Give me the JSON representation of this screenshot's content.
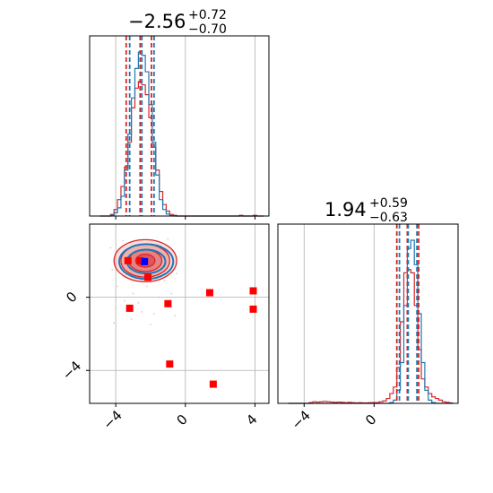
{
  "chart_data": {
    "type": "corner",
    "colors": {
      "blue": "#1f77b4",
      "red": "#d62728",
      "grid": "#b0b0b0",
      "marker_red": "#ff0000",
      "marker_blue": "#0000ff"
    },
    "params": [
      {
        "title_main": "−2.56",
        "title_sup": "+0.72",
        "title_sub": "−0.70",
        "xlim": [
          -5.5,
          4.8
        ],
        "ticks": [
          -4,
          0,
          4
        ],
        "tick_labels": [
          "−4",
          "0",
          "4"
        ],
        "quantiles_blue": [
          -3.2,
          -2.5,
          -1.8
        ],
        "quantiles_red": [
          -3.4,
          -2.6,
          -1.95
        ],
        "bin_centers": [
          -4.8,
          -4.6,
          -4.4,
          -4.2,
          -4.0,
          -3.8,
          -3.6,
          -3.4,
          -3.2,
          -3.0,
          -2.8,
          -2.6,
          -2.4,
          -2.2,
          -2.0,
          -1.8,
          -1.6,
          -1.4,
          -1.2,
          -1.0,
          -0.8,
          -0.6,
          -0.4,
          -0.2,
          0.0,
          0.2,
          0.4,
          0.6,
          0.8,
          1.0,
          1.2,
          1.4,
          1.6,
          1.8,
          2.0,
          2.2,
          2.4,
          2.6,
          2.8,
          3.0,
          3.2,
          3.4,
          3.6,
          3.8,
          4.0,
          4.2,
          4.4
        ],
        "hist_blue": [
          0,
          0,
          0,
          0.005,
          0.02,
          0.05,
          0.12,
          0.28,
          0.5,
          0.72,
          0.9,
          1.0,
          0.98,
          0.88,
          0.68,
          0.45,
          0.25,
          0.1,
          0.04,
          0.012,
          0.003,
          0,
          0,
          0,
          0,
          0,
          0,
          0,
          0,
          0,
          0,
          0,
          0,
          0,
          0,
          0,
          0,
          0,
          0,
          0,
          0,
          0,
          0,
          0,
          0,
          0,
          0
        ],
        "hist_red": [
          0,
          0,
          0,
          0.01,
          0.04,
          0.1,
          0.18,
          0.3,
          0.45,
          0.66,
          0.78,
          0.82,
          0.8,
          0.74,
          0.6,
          0.42,
          0.28,
          0.15,
          0.07,
          0.03,
          0.01,
          0.004,
          0,
          0,
          0,
          0,
          0,
          0,
          0,
          0,
          0,
          0,
          0,
          0,
          0,
          0,
          0,
          0,
          0,
          0,
          0.004,
          0,
          0,
          0,
          0.004,
          0,
          0
        ]
      },
      {
        "title_main": "1.94",
        "title_sup": "+0.59",
        "title_sub": "−0.63",
        "xlim": [
          -5.5,
          4.8
        ],
        "ticks": [
          -4,
          0
        ],
        "tick_labels": [
          "−4",
          "0"
        ],
        "quantiles_blue": [
          1.45,
          1.95,
          2.45
        ],
        "quantiles_red": [
          1.3,
          1.9,
          2.55
        ],
        "bin_centers": [
          -4.8,
          -4.6,
          -4.4,
          -4.2,
          -4.0,
          -3.8,
          -3.6,
          -3.4,
          -3.2,
          -3.0,
          -2.8,
          -2.6,
          -2.4,
          -2.2,
          -2.0,
          -1.8,
          -1.6,
          -1.4,
          -1.2,
          -1.0,
          -0.8,
          -0.6,
          -0.4,
          -0.2,
          0.0,
          0.2,
          0.4,
          0.6,
          0.8,
          1.0,
          1.2,
          1.4,
          1.6,
          1.8,
          2.0,
          2.2,
          2.4,
          2.6,
          2.8,
          3.0,
          3.2,
          3.4,
          3.6,
          3.8,
          4.0,
          4.2,
          4.4
        ],
        "hist_blue": [
          0,
          0,
          0,
          0,
          0,
          0,
          0,
          0,
          0,
          0,
          0,
          0,
          0,
          0,
          0,
          0,
          0,
          0,
          0,
          0,
          0,
          0,
          0,
          0,
          0,
          0,
          0,
          0,
          0,
          0.005,
          0.02,
          0.08,
          0.25,
          0.6,
          0.95,
          1.0,
          0.85,
          0.55,
          0.25,
          0.08,
          0.02,
          0.005,
          0,
          0,
          0,
          0,
          0
        ],
        "hist_red": [
          0,
          0,
          0,
          0,
          0,
          0,
          0.005,
          0.01,
          0.008,
          0.01,
          0.012,
          0.01,
          0.008,
          0.006,
          0.008,
          0.006,
          0.004,
          0.006,
          0.004,
          0.003,
          0.004,
          0.003,
          0.003,
          0.004,
          0.005,
          0.005,
          0.01,
          0.015,
          0.03,
          0.06,
          0.1,
          0.22,
          0.5,
          0.8,
          0.82,
          0.8,
          0.6,
          0.33,
          0.15,
          0.1,
          0.06,
          0.04,
          0.03,
          0.02,
          0.01,
          0.006,
          0.003
        ]
      }
    ],
    "joint": {
      "ylim": [
        -5.8,
        4.0
      ],
      "yticks": [
        -4,
        0
      ],
      "ytick_labels": [
        "−4",
        "0"
      ],
      "center": [
        -2.3,
        2.0
      ],
      "red_contours": [
        {
          "rx": 1.8,
          "ry": 1.15,
          "fill_opacity": 0.28
        },
        {
          "rx": 1.4,
          "ry": 0.9,
          "fill_opacity": 0.45
        },
        {
          "rx": 0.95,
          "ry": 0.6,
          "fill_opacity": 0.62
        },
        {
          "rx": 0.55,
          "ry": 0.35,
          "fill_opacity": 0.8
        }
      ],
      "blue_contours": [
        {
          "rx": 1.55,
          "ry": 0.95
        },
        {
          "rx": 1.1,
          "ry": 0.65
        }
      ],
      "red_points": [
        [
          -3.3,
          2.0
        ],
        [
          -2.6,
          2.0
        ],
        [
          -2.15,
          1.1
        ],
        [
          1.4,
          0.25
        ],
        [
          3.9,
          0.35
        ],
        [
          -3.2,
          -0.6
        ],
        [
          -1.0,
          -0.35
        ],
        [
          3.9,
          -0.65
        ],
        [
          -0.9,
          -3.65
        ],
        [
          1.6,
          -4.75
        ]
      ],
      "blue_points": [
        [
          -2.35,
          1.95
        ]
      ],
      "scatter_points": [
        [
          -3.5,
          -0.2
        ],
        [
          -3.9,
          0.6
        ],
        [
          -1.2,
          0.9
        ],
        [
          -0.5,
          1.3
        ],
        [
          -4.2,
          1.5
        ],
        [
          -2.7,
          -0.3
        ],
        [
          -1.8,
          -0.9
        ],
        [
          -3.1,
          -1.2
        ],
        [
          -4.0,
          -0.6
        ],
        [
          -0.8,
          0.2
        ],
        [
          -2.2,
          0.6
        ],
        [
          -3.6,
          3.1
        ],
        [
          -1.0,
          3.2
        ],
        [
          -4.3,
          2.7
        ],
        [
          -2.0,
          -1.5
        ],
        [
          -1.5,
          0.0
        ],
        [
          -0.6,
          -1.0
        ],
        [
          -3.0,
          0.2
        ],
        [
          -4.1,
          -1.4
        ],
        [
          -2.5,
          -0.8
        ]
      ]
    }
  }
}
